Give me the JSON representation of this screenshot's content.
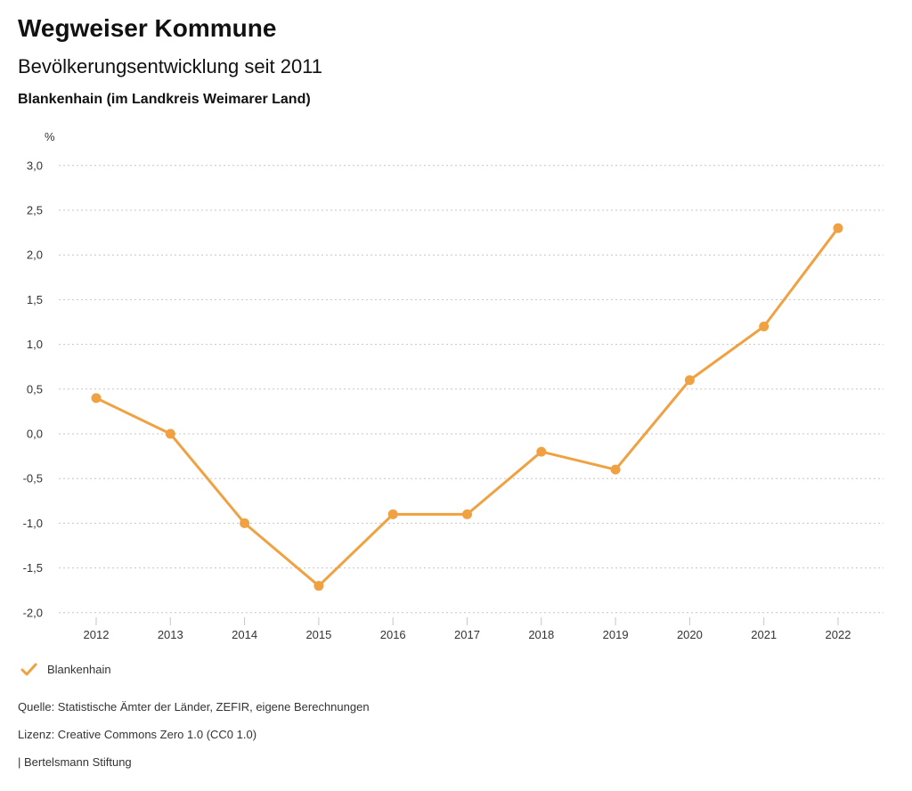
{
  "header": {
    "title": "Wegweiser Kommune",
    "subtitle": "Bevölkerungsentwicklung seit 2011",
    "region": "Blankenhain (im Landkreis Weimarer Land)"
  },
  "chart_data": {
    "type": "line",
    "title": "Bevölkerungsentwicklung seit 2011",
    "subtitle": "Blankenhain (im Landkreis Weimarer Land)",
    "unit_label": "%",
    "categories": [
      "2012",
      "2013",
      "2014",
      "2015",
      "2016",
      "2017",
      "2018",
      "2019",
      "2020",
      "2021",
      "2022"
    ],
    "series": [
      {
        "name": "Blankenhain",
        "color": "#F0A142",
        "values": [
          0.4,
          0.0,
          -1.0,
          -1.7,
          -0.9,
          -0.9,
          -0.2,
          -0.4,
          0.6,
          1.2,
          2.3
        ]
      }
    ],
    "ylim": [
      -2.0,
      3.0
    ],
    "ytick_step": 0.5,
    "ytick_labels": [
      "3,0",
      "2,5",
      "2,0",
      "1,5",
      "1,0",
      "0,5",
      "0,0",
      "-0,5",
      "-1,0",
      "-1,5",
      "-2,0"
    ],
    "grid": "horizontal-dotted",
    "legend_position": "bottom-left",
    "grid_color": "#c6c6c6",
    "text_color": "#333333"
  },
  "legend": {
    "items": [
      {
        "label": "Blankenhain",
        "color": "#F0A142",
        "marker": "check"
      }
    ]
  },
  "footer": {
    "source": "Quelle: Statistische Ämter der Länder, ZEFIR, eigene Berechnungen",
    "license": "Lizenz: Creative Commons Zero 1.0 (CC0 1.0)",
    "attribution": "| Bertelsmann Stiftung"
  }
}
